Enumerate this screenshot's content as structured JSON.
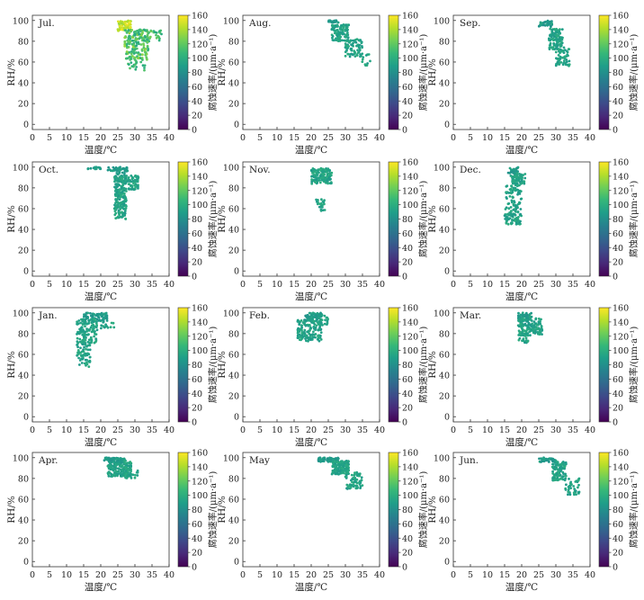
{
  "chart_data": [
    {
      "type": "scatter",
      "title": "Jul.",
      "xlabel": "温度/℃",
      "ylabel": "RH/%",
      "xlim": [
        0,
        40
      ],
      "ylim": [
        -5,
        105
      ],
      "xticks": [
        0,
        5,
        10,
        15,
        20,
        25,
        30,
        35,
        40
      ],
      "yticks": [
        0,
        20,
        40,
        60,
        80,
        100
      ],
      "colorbar": {
        "label": "腐蚀速率/(μm·a⁻¹)",
        "range": [
          0,
          160
        ],
        "ticks": [
          0,
          20,
          40,
          60,
          80,
          100,
          120,
          140,
          160
        ],
        "colormap": "viridis"
      },
      "clusters": [
        {
          "x": [
            25,
            29
          ],
          "y": [
            90,
            100
          ],
          "c": [
            135,
            160
          ],
          "n": 70
        },
        {
          "x": [
            27,
            34
          ],
          "y": [
            62,
            92
          ],
          "c": [
            95,
            135
          ],
          "n": 160
        },
        {
          "x": [
            30,
            38
          ],
          "y": [
            80,
            92
          ],
          "c": [
            95,
            125
          ],
          "n": 45
        },
        {
          "x": [
            28,
            33
          ],
          "y": [
            52,
            65
          ],
          "c": [
            95,
            120
          ],
          "n": 20
        }
      ]
    },
    {
      "type": "scatter",
      "title": "Aug.",
      "xlabel": "温度/℃",
      "ylabel": "RH/%",
      "xlim": [
        0,
        40
      ],
      "ylim": [
        -5,
        105
      ],
      "xticks": [
        0,
        5,
        10,
        15,
        20,
        25,
        30,
        35,
        40
      ],
      "yticks": [
        0,
        20,
        40,
        60,
        80,
        100
      ],
      "colorbar": {
        "label": "腐蚀速率/(μm·a⁻¹)",
        "range": [
          0,
          160
        ],
        "ticks": [
          0,
          20,
          40,
          60,
          80,
          100,
          120,
          140,
          160
        ],
        "colormap": "viridis"
      },
      "clusters": [
        {
          "x": [
            25,
            28
          ],
          "y": [
            98,
            100
          ],
          "c": [
            80,
            95
          ],
          "n": 30
        },
        {
          "x": [
            26,
            31
          ],
          "y": [
            80,
            96
          ],
          "c": [
            85,
            100
          ],
          "n": 110
        },
        {
          "x": [
            30,
            35
          ],
          "y": [
            65,
            82
          ],
          "c": [
            85,
            100
          ],
          "n": 70
        },
        {
          "x": [
            34,
            38
          ],
          "y": [
            56,
            68
          ],
          "c": [
            85,
            100
          ],
          "n": 12
        }
      ]
    },
    {
      "type": "scatter",
      "title": "Sep.",
      "xlabel": "温度/℃",
      "ylabel": "RH/%",
      "xlim": [
        0,
        40
      ],
      "ylim": [
        -5,
        105
      ],
      "xticks": [
        0,
        5,
        10,
        15,
        20,
        25,
        30,
        35,
        40
      ],
      "yticks": [
        0,
        20,
        40,
        60,
        80,
        100
      ],
      "colorbar": {
        "label": "腐蚀速率/(μm·a⁻¹)",
        "range": [
          0,
          160
        ],
        "ticks": [
          0,
          20,
          40,
          60,
          80,
          100,
          120,
          140,
          160
        ],
        "colormap": "viridis"
      },
      "clusters": [
        {
          "x": [
            25,
            29
          ],
          "y": [
            94,
            100
          ],
          "c": [
            80,
            95
          ],
          "n": 30
        },
        {
          "x": [
            28,
            32
          ],
          "y": [
            72,
            92
          ],
          "c": [
            85,
            100
          ],
          "n": 100
        },
        {
          "x": [
            30,
            34
          ],
          "y": [
            56,
            75
          ],
          "c": [
            85,
            100
          ],
          "n": 60
        }
      ]
    },
    {
      "type": "scatter",
      "title": "Oct.",
      "xlabel": "温度/℃",
      "ylabel": "RH/%",
      "xlim": [
        0,
        40
      ],
      "ylim": [
        -5,
        105
      ],
      "xticks": [
        0,
        5,
        10,
        15,
        20,
        25,
        30,
        35,
        40
      ],
      "yticks": [
        0,
        20,
        40,
        60,
        80,
        100
      ],
      "colorbar": {
        "label": "腐蚀速率/(μm·a⁻¹)",
        "range": [
          0,
          160
        ],
        "ticks": [
          0,
          20,
          40,
          60,
          80,
          100,
          120,
          140,
          160
        ],
        "colormap": "viridis"
      },
      "clusters": [
        {
          "x": [
            16,
            20
          ],
          "y": [
            98,
            100
          ],
          "c": [
            80,
            95
          ],
          "n": 15
        },
        {
          "x": [
            22,
            28
          ],
          "y": [
            96,
            100
          ],
          "c": [
            80,
            95
          ],
          "n": 40
        },
        {
          "x": [
            24,
            27.5
          ],
          "y": [
            50,
            95
          ],
          "c": [
            85,
            100
          ],
          "n": 220
        },
        {
          "x": [
            27,
            31
          ],
          "y": [
            78,
            92
          ],
          "c": [
            85,
            100
          ],
          "n": 60
        }
      ]
    },
    {
      "type": "scatter",
      "title": "Nov.",
      "xlabel": "温度/℃",
      "ylabel": "RH/%",
      "xlim": [
        0,
        40
      ],
      "ylim": [
        -5,
        105
      ],
      "xticks": [
        0,
        5,
        10,
        15,
        20,
        25,
        30,
        35,
        40
      ],
      "yticks": [
        0,
        20,
        40,
        60,
        80,
        100
      ],
      "colorbar": {
        "label": "腐蚀速率/(μm·a⁻¹)",
        "range": [
          0,
          160
        ],
        "ticks": [
          0,
          20,
          40,
          60,
          80,
          100,
          120,
          140,
          160
        ],
        "colormap": "viridis"
      },
      "clusters": [
        {
          "x": [
            20,
            26
          ],
          "y": [
            84,
            99
          ],
          "c": [
            85,
            100
          ],
          "n": 140
        },
        {
          "x": [
            21,
            24
          ],
          "y": [
            58,
            70
          ],
          "c": [
            85,
            100
          ],
          "n": 25
        }
      ]
    },
    {
      "type": "scatter",
      "title": "Dec.",
      "xlabel": "温度/℃",
      "ylabel": "RH/%",
      "xlim": [
        0,
        40
      ],
      "ylim": [
        -5,
        105
      ],
      "xticks": [
        0,
        5,
        10,
        15,
        20,
        25,
        30,
        35,
        40
      ],
      "yticks": [
        0,
        20,
        40,
        60,
        80,
        100
      ],
      "colorbar": {
        "label": "腐蚀速率/(μm·a⁻¹)",
        "range": [
          0,
          160
        ],
        "ticks": [
          0,
          20,
          40,
          60,
          80,
          100,
          120,
          140,
          160
        ],
        "colormap": "viridis"
      },
      "clusters": [
        {
          "x": [
            16,
            19
          ],
          "y": [
            90,
            100
          ],
          "c": [
            80,
            95
          ],
          "n": 30
        },
        {
          "x": [
            17,
            21
          ],
          "y": [
            84,
            94
          ],
          "c": [
            85,
            100
          ],
          "n": 70
        },
        {
          "x": [
            15,
            20
          ],
          "y": [
            45,
            84
          ],
          "c": [
            85,
            100
          ],
          "n": 140
        }
      ]
    },
    {
      "type": "scatter",
      "title": "Jan.",
      "xlabel": "温度/℃",
      "ylabel": "RH/%",
      "xlim": [
        0,
        40
      ],
      "ylim": [
        -5,
        105
      ],
      "xticks": [
        0,
        5,
        10,
        15,
        20,
        25,
        30,
        35,
        40
      ],
      "yticks": [
        0,
        20,
        40,
        60,
        80,
        100
      ],
      "colorbar": {
        "label": "腐蚀速率/(μm·a⁻¹)",
        "range": [
          0,
          160
        ],
        "ticks": [
          0,
          20,
          40,
          60,
          80,
          100,
          120,
          140,
          160
        ],
        "colormap": "viridis"
      },
      "clusters": [
        {
          "x": [
            15,
            22
          ],
          "y": [
            92,
            100
          ],
          "c": [
            80,
            95
          ],
          "n": 70
        },
        {
          "x": [
            13,
            19
          ],
          "y": [
            70,
            94
          ],
          "c": [
            85,
            100
          ],
          "n": 120
        },
        {
          "x": [
            13,
            17
          ],
          "y": [
            48,
            72
          ],
          "c": [
            85,
            100
          ],
          "n": 60
        },
        {
          "x": [
            20,
            24
          ],
          "y": [
            85,
            92
          ],
          "c": [
            85,
            100
          ],
          "n": 15
        }
      ]
    },
    {
      "type": "scatter",
      "title": "Feb.",
      "xlabel": "温度/℃",
      "ylabel": "RH/%",
      "xlim": [
        0,
        40
      ],
      "ylim": [
        -5,
        105
      ],
      "xticks": [
        0,
        5,
        10,
        15,
        20,
        25,
        30,
        35,
        40
      ],
      "yticks": [
        0,
        20,
        40,
        60,
        80,
        100
      ],
      "colorbar": {
        "label": "腐蚀速率/(μm·a⁻¹)",
        "range": [
          0,
          160
        ],
        "ticks": [
          0,
          20,
          40,
          60,
          80,
          100,
          120,
          140,
          160
        ],
        "colormap": "viridis"
      },
      "clusters": [
        {
          "x": [
            18,
            23
          ],
          "y": [
            92,
            100
          ],
          "c": [
            80,
            95
          ],
          "n": 70
        },
        {
          "x": [
            16,
            23
          ],
          "y": [
            72,
            93
          ],
          "c": [
            85,
            100
          ],
          "n": 150
        },
        {
          "x": [
            22,
            25
          ],
          "y": [
            88,
            98
          ],
          "c": [
            85,
            100
          ],
          "n": 20
        }
      ]
    },
    {
      "type": "scatter",
      "title": "Mar.",
      "xlabel": "温度/℃",
      "ylabel": "RH/%",
      "xlim": [
        0,
        40
      ],
      "ylim": [
        -5,
        105
      ],
      "xticks": [
        0,
        5,
        10,
        15,
        20,
        25,
        30,
        35,
        40
      ],
      "yticks": [
        0,
        20,
        40,
        60,
        80,
        100
      ],
      "colorbar": {
        "label": "腐蚀速率/(μm·a⁻¹)",
        "range": [
          0,
          160
        ],
        "ticks": [
          0,
          20,
          40,
          60,
          80,
          100,
          120,
          140,
          160
        ],
        "colormap": "viridis"
      },
      "clusters": [
        {
          "x": [
            19,
            23
          ],
          "y": [
            92,
            100
          ],
          "c": [
            80,
            95
          ],
          "n": 50
        },
        {
          "x": [
            19,
            26
          ],
          "y": [
            78,
            95
          ],
          "c": [
            85,
            100
          ],
          "n": 140
        },
        {
          "x": [
            19,
            22
          ],
          "y": [
            70,
            80
          ],
          "c": [
            85,
            100
          ],
          "n": 20
        }
      ]
    },
    {
      "type": "scatter",
      "title": "Apr.",
      "xlabel": "温度/℃",
      "ylabel": "RH/%",
      "xlim": [
        0,
        40
      ],
      "ylim": [
        -5,
        105
      ],
      "xticks": [
        0,
        5,
        10,
        15,
        20,
        25,
        30,
        35,
        40
      ],
      "yticks": [
        0,
        20,
        40,
        60,
        80,
        100
      ],
      "colorbar": {
        "label": "腐蚀速率/(μm·a⁻¹)",
        "range": [
          0,
          160
        ],
        "ticks": [
          0,
          20,
          40,
          60,
          80,
          100,
          120,
          140,
          160
        ],
        "colormap": "viridis"
      },
      "clusters": [
        {
          "x": [
            21,
            27
          ],
          "y": [
            96,
            100
          ],
          "c": [
            80,
            95
          ],
          "n": 70
        },
        {
          "x": [
            22,
            29
          ],
          "y": [
            82,
            97
          ],
          "c": [
            85,
            100
          ],
          "n": 170
        },
        {
          "x": [
            27,
            31
          ],
          "y": [
            80,
            88
          ],
          "c": [
            85,
            100
          ],
          "n": 20
        }
      ]
    },
    {
      "type": "scatter",
      "title": "May",
      "xlabel": "温度/℃",
      "ylabel": "RH/%",
      "xlim": [
        0,
        40
      ],
      "ylim": [
        -5,
        105
      ],
      "xticks": [
        0,
        5,
        10,
        15,
        20,
        25,
        30,
        35,
        40
      ],
      "yticks": [
        0,
        20,
        40,
        60,
        80,
        100
      ],
      "colorbar": {
        "label": "腐蚀速率/(μm·a⁻¹)",
        "range": [
          0,
          160
        ],
        "ticks": [
          0,
          20,
          40,
          60,
          80,
          100,
          120,
          140,
          160
        ],
        "colormap": "viridis"
      },
      "clusters": [
        {
          "x": [
            22,
            28
          ],
          "y": [
            96,
            100
          ],
          "c": [
            80,
            95
          ],
          "n": 60
        },
        {
          "x": [
            26,
            31
          ],
          "y": [
            84,
            97
          ],
          "c": [
            85,
            100
          ],
          "n": 150
        },
        {
          "x": [
            30,
            35
          ],
          "y": [
            70,
            86
          ],
          "c": [
            85,
            100
          ],
          "n": 70
        }
      ]
    },
    {
      "type": "scatter",
      "title": "Jun.",
      "xlabel": "温度/℃",
      "ylabel": "RH/%",
      "xlim": [
        0,
        40
      ],
      "ylim": [
        -5,
        105
      ],
      "xticks": [
        0,
        5,
        10,
        15,
        20,
        25,
        30,
        35,
        40
      ],
      "yticks": [
        0,
        20,
        40,
        60,
        80,
        100
      ],
      "colorbar": {
        "label": "腐蚀速率/(μm·a⁻¹)",
        "range": [
          0,
          160
        ],
        "ticks": [
          0,
          20,
          40,
          60,
          80,
          100,
          120,
          140,
          160
        ],
        "colormap": "viridis"
      },
      "clusters": [
        {
          "x": [
            25,
            30
          ],
          "y": [
            96,
            100
          ],
          "c": [
            80,
            95
          ],
          "n": 40
        },
        {
          "x": [
            29,
            33
          ],
          "y": [
            78,
            96
          ],
          "c": [
            85,
            100
          ],
          "n": 120
        },
        {
          "x": [
            32,
            37
          ],
          "y": [
            64,
            80
          ],
          "c": [
            85,
            100
          ],
          "n": 40
        }
      ]
    }
  ]
}
